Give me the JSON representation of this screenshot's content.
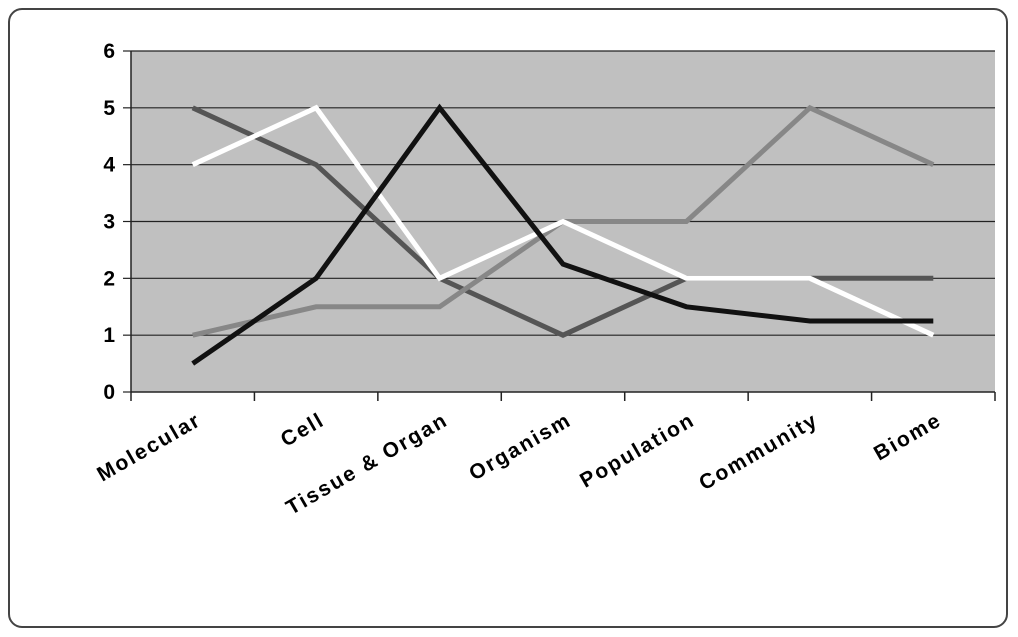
{
  "chart_data": {
    "type": "line",
    "title": "",
    "xlabel": "",
    "ylabel": "",
    "categories": [
      "Molecular",
      "Cell",
      "Tissue & Organ",
      "Organism",
      "Population",
      "Community",
      "Biome"
    ],
    "ylim": [
      0,
      6
    ],
    "yticks": [
      "0",
      "1",
      "2",
      "3",
      "4",
      "5",
      "6"
    ],
    "grid": true,
    "legend": "none",
    "plot_background": "#c0c0c0",
    "series": [
      {
        "color": "#555555",
        "values": [
          5,
          4,
          2,
          1,
          2,
          2,
          2
        ]
      },
      {
        "color": "#878787",
        "values": [
          1,
          1.5,
          1.5,
          3,
          3,
          5,
          4
        ]
      },
      {
        "color": "#ffffff",
        "values": [
          4,
          5,
          2,
          3,
          2,
          2,
          1
        ]
      },
      {
        "color": "#111111",
        "values": [
          0.5,
          2,
          5,
          2.25,
          1.5,
          1.25,
          1.25
        ]
      }
    ],
    "series_x_offset": 0.5
  }
}
